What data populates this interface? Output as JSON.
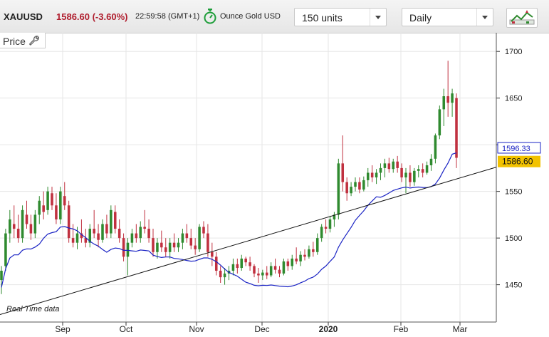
{
  "header": {
    "symbol": "XAUUSD",
    "price_change": "1586.60 (-3.60%)",
    "time": "22:59:58",
    "timezone": "(GMT+1)",
    "unit": "Ounce Gold USD",
    "units_select": "150 units",
    "period_select": "Daily"
  },
  "panel": {
    "label": "Price"
  },
  "footer": {
    "realtime": "Real Time data"
  },
  "colors": {
    "up": "#2f8a2f",
    "down": "#c0303f",
    "ma": "#1a23c4",
    "trend": "#111111",
    "price_tag": "#f2c200",
    "ma_tag": "#1a23c4"
  },
  "chart_data": {
    "type": "candlestick",
    "ylim": [
      1410,
      1720
    ],
    "yticks": [
      1450,
      1500,
      1550,
      1600,
      1650,
      1700
    ],
    "xlabels": [
      "Sep",
      "Oct",
      "Nov",
      "Dec",
      "2020",
      "Feb",
      "Mar"
    ],
    "last_price": "1586.60",
    "ma_value": "1596.33",
    "trendline": {
      "from": 1418,
      "to": 1576
    },
    "candles": [
      [
        1455,
        1470,
        1440,
        1465
      ],
      [
        1470,
        1510,
        1465,
        1505
      ],
      [
        1505,
        1530,
        1495,
        1520
      ],
      [
        1515,
        1535,
        1500,
        1510
      ],
      [
        1510,
        1525,
        1495,
        1500
      ],
      [
        1500,
        1535,
        1495,
        1530
      ],
      [
        1525,
        1540,
        1510,
        1515
      ],
      [
        1515,
        1525,
        1498,
        1505
      ],
      [
        1505,
        1530,
        1500,
        1525
      ],
      [
        1525,
        1545,
        1515,
        1540
      ],
      [
        1535,
        1550,
        1520,
        1528
      ],
      [
        1530,
        1555,
        1525,
        1550
      ],
      [
        1548,
        1555,
        1530,
        1535
      ],
      [
        1535,
        1548,
        1515,
        1520
      ],
      [
        1520,
        1555,
        1515,
        1550
      ],
      [
        1545,
        1560,
        1530,
        1535
      ],
      [
        1535,
        1540,
        1495,
        1500
      ],
      [
        1500,
        1515,
        1490,
        1495
      ],
      [
        1495,
        1512,
        1488,
        1505
      ],
      [
        1505,
        1520,
        1495,
        1500
      ],
      [
        1500,
        1510,
        1490,
        1495
      ],
      [
        1495,
        1515,
        1490,
        1510
      ],
      [
        1510,
        1530,
        1500,
        1505
      ],
      [
        1505,
        1515,
        1490,
        1498
      ],
      [
        1498,
        1520,
        1495,
        1515
      ],
      [
        1515,
        1525,
        1500,
        1505
      ],
      [
        1505,
        1535,
        1500,
        1530
      ],
      [
        1528,
        1535,
        1505,
        1510
      ],
      [
        1510,
        1520,
        1495,
        1500
      ],
      [
        1500,
        1505,
        1475,
        1480
      ],
      [
        1480,
        1500,
        1460,
        1495
      ],
      [
        1495,
        1510,
        1490,
        1505
      ],
      [
        1505,
        1515,
        1495,
        1500
      ],
      [
        1500,
        1518,
        1495,
        1512
      ],
      [
        1512,
        1530,
        1505,
        1510
      ],
      [
        1510,
        1520,
        1495,
        1500
      ],
      [
        1500,
        1510,
        1480,
        1485
      ],
      [
        1485,
        1500,
        1478,
        1495
      ],
      [
        1495,
        1508,
        1485,
        1490
      ],
      [
        1490,
        1500,
        1480,
        1485
      ],
      [
        1485,
        1500,
        1478,
        1495
      ],
      [
        1495,
        1505,
        1485,
        1490
      ],
      [
        1490,
        1500,
        1485,
        1495
      ],
      [
        1495,
        1510,
        1488,
        1505
      ],
      [
        1505,
        1515,
        1495,
        1500
      ],
      [
        1500,
        1510,
        1488,
        1492
      ],
      [
        1492,
        1500,
        1482,
        1488
      ],
      [
        1488,
        1515,
        1485,
        1512
      ],
      [
        1512,
        1518,
        1500,
        1505
      ],
      [
        1505,
        1515,
        1480,
        1485
      ],
      [
        1485,
        1495,
        1470,
        1480
      ],
      [
        1480,
        1485,
        1460,
        1465
      ],
      [
        1465,
        1470,
        1452,
        1458
      ],
      [
        1458,
        1468,
        1450,
        1462
      ],
      [
        1462,
        1470,
        1455,
        1465
      ],
      [
        1465,
        1478,
        1460,
        1472
      ],
      [
        1472,
        1478,
        1462,
        1468
      ],
      [
        1468,
        1482,
        1465,
        1478
      ],
      [
        1478,
        1480,
        1470,
        1474
      ],
      [
        1474,
        1480,
        1465,
        1470
      ],
      [
        1470,
        1472,
        1458,
        1462
      ],
      [
        1462,
        1468,
        1452,
        1460
      ],
      [
        1460,
        1466,
        1455,
        1463
      ],
      [
        1463,
        1470,
        1456,
        1460
      ],
      [
        1460,
        1474,
        1458,
        1470
      ],
      [
        1470,
        1478,
        1462,
        1466
      ],
      [
        1466,
        1470,
        1458,
        1462
      ],
      [
        1462,
        1478,
        1460,
        1475
      ],
      [
        1475,
        1478,
        1465,
        1470
      ],
      [
        1470,
        1482,
        1466,
        1478
      ],
      [
        1478,
        1490,
        1472,
        1475
      ],
      [
        1475,
        1486,
        1470,
        1482
      ],
      [
        1482,
        1488,
        1476,
        1480
      ],
      [
        1480,
        1492,
        1478,
        1488
      ],
      [
        1488,
        1496,
        1480,
        1485
      ],
      [
        1485,
        1505,
        1482,
        1500
      ],
      [
        1500,
        1515,
        1496,
        1512
      ],
      [
        1512,
        1520,
        1505,
        1510
      ],
      [
        1510,
        1524,
        1506,
        1520
      ],
      [
        1520,
        1528,
        1512,
        1525
      ],
      [
        1525,
        1585,
        1520,
        1580
      ],
      [
        1580,
        1610,
        1550,
        1560
      ],
      [
        1560,
        1565,
        1540,
        1548
      ],
      [
        1548,
        1560,
        1545,
        1555
      ],
      [
        1555,
        1565,
        1550,
        1560
      ],
      [
        1560,
        1565,
        1548,
        1552
      ],
      [
        1552,
        1566,
        1550,
        1562
      ],
      [
        1562,
        1575,
        1555,
        1570
      ],
      [
        1570,
        1578,
        1560,
        1565
      ],
      [
        1565,
        1574,
        1558,
        1570
      ],
      [
        1570,
        1580,
        1562,
        1575
      ],
      [
        1575,
        1585,
        1565,
        1580
      ],
      [
        1580,
        1586,
        1570,
        1574
      ],
      [
        1574,
        1585,
        1570,
        1582
      ],
      [
        1582,
        1588,
        1570,
        1575
      ],
      [
        1575,
        1580,
        1560,
        1565
      ],
      [
        1565,
        1575,
        1548,
        1570
      ],
      [
        1570,
        1578,
        1555,
        1560
      ],
      [
        1560,
        1575,
        1556,
        1572
      ],
      [
        1572,
        1578,
        1565,
        1574
      ],
      [
        1574,
        1580,
        1565,
        1570
      ],
      [
        1570,
        1582,
        1568,
        1578
      ],
      [
        1578,
        1590,
        1572,
        1585
      ],
      [
        1585,
        1612,
        1580,
        1610
      ],
      [
        1610,
        1642,
        1606,
        1638
      ],
      [
        1638,
        1660,
        1620,
        1652
      ],
      [
        1652,
        1690,
        1630,
        1645
      ],
      [
        1645,
        1660,
        1630,
        1655
      ],
      [
        1650,
        1655,
        1575,
        1586
      ]
    ]
  }
}
